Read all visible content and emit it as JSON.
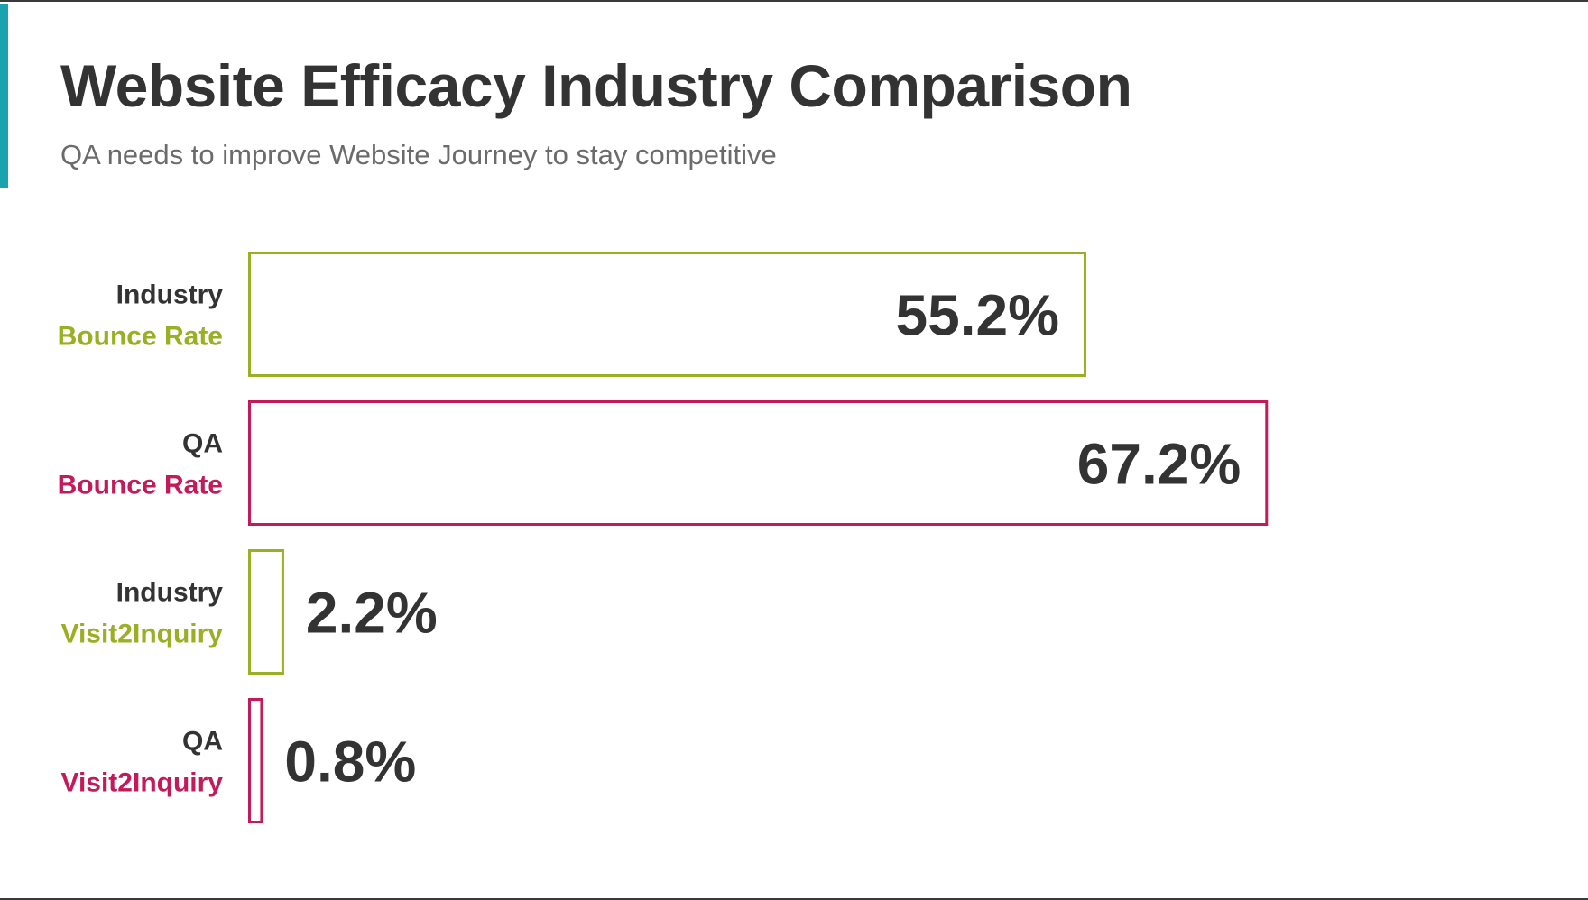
{
  "title": "Website Efficacy Industry Comparison",
  "subtitle": "QA needs to improve Website Journey to stay competitive",
  "colors": {
    "accent": "#1aa3ae",
    "industry": "#9aaf24",
    "qa": "#c21a5a",
    "text": "#333333"
  },
  "chart_data": {
    "type": "bar",
    "orientation": "horizontal",
    "title": "Website Efficacy Industry Comparison",
    "subtitle": "QA needs to improve Website Journey to stay competitive",
    "grid": false,
    "legend": "none",
    "xlim": [
      0,
      80
    ],
    "categories": [
      {
        "line1": "Industry",
        "line2": "Bounce Rate",
        "group": "industry"
      },
      {
        "line1": "QA",
        "line2": "Bounce Rate",
        "group": "qa"
      },
      {
        "line1": "Industry",
        "line2": "Visit2Inquiry",
        "group": "industry"
      },
      {
        "line1": "QA",
        "line2": "Visit2Inquiry",
        "group": "qa"
      }
    ],
    "values": [
      55.2,
      67.2,
      2.2,
      0.8
    ],
    "value_labels": [
      "55.2%",
      "67.2%",
      "2.2%",
      "0.8%"
    ]
  }
}
